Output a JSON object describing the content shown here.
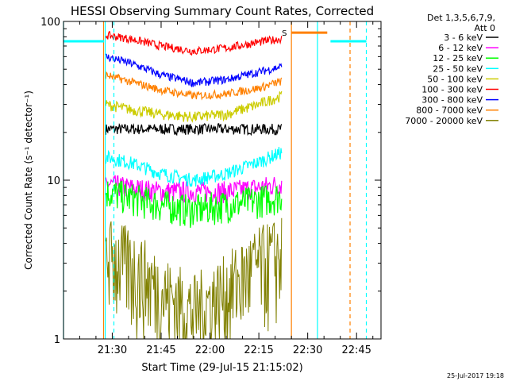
{
  "chart_data": {
    "type": "line",
    "title": "HESSI Observing Summary Count Rates, Corrected",
    "xlabel": "Start Time (29-Jul-15 21:15:02)",
    "ylabel": "Corrected Count Rate (s⁻¹ detector⁻¹)",
    "y_scale": "log",
    "ylim": [
      1,
      100
    ],
    "yticks": [
      "1",
      "10",
      "100"
    ],
    "xlim": [
      "21:15:02",
      "22:52:30"
    ],
    "xticks": [
      "21:30",
      "21:45",
      "22:00",
      "22:15",
      "22:30",
      "22:45"
    ],
    "legend_header": [
      "Det 1,3,5,6,7,9,",
      "Att 0"
    ],
    "legend_position": "right",
    "footer_date": "25-Jul-2017 19:18",
    "annotation_s": "S",
    "series": [
      {
        "name": "3 - 6 keV",
        "color": "#000000",
        "x": [
          "21:28",
          "21:35",
          "21:45",
          "21:55",
          "22:05",
          "22:15",
          "22:22"
        ],
        "y": [
          21,
          21,
          21,
          21,
          21,
          21,
          21
        ],
        "noise": 0.04
      },
      {
        "name": "6 - 12 keV",
        "color": "#ff00ff",
        "x": [
          "21:28",
          "21:35",
          "21:45",
          "21:55",
          "22:05",
          "22:15",
          "22:22"
        ],
        "y": [
          9.5,
          9,
          8.5,
          8.5,
          8.5,
          9,
          9.5
        ],
        "noise": 0.08
      },
      {
        "name": "12 - 25 keV",
        "color": "#00ff00",
        "x": [
          "21:28",
          "21:35",
          "21:45",
          "21:55",
          "22:05",
          "22:15",
          "22:22"
        ],
        "y": [
          8.5,
          7.8,
          7,
          6.5,
          7,
          7.5,
          8
        ],
        "noise": 0.12
      },
      {
        "name": "25 - 50 keV",
        "color": "#00ffff",
        "x": [
          "21:28",
          "21:35",
          "21:45",
          "21:55",
          "22:05",
          "22:15",
          "22:22"
        ],
        "y": [
          14,
          13,
          11,
          10,
          11,
          13,
          15
        ],
        "noise": 0.05
      },
      {
        "name": "50 - 100 keV",
        "color": "#cccc00",
        "x": [
          "21:28",
          "21:35",
          "21:45",
          "21:55",
          "22:05",
          "22:15",
          "22:22"
        ],
        "y": [
          30,
          28,
          26,
          25,
          26,
          30,
          34
        ],
        "noise": 0.04
      },
      {
        "name": "100 - 300 keV",
        "color": "#ff0000",
        "x": [
          "21:28",
          "21:35",
          "21:45",
          "21:55",
          "22:05",
          "22:15",
          "22:22"
        ],
        "y": [
          82,
          78,
          70,
          65,
          68,
          74,
          78
        ],
        "noise": 0.03
      },
      {
        "name": "300 - 800 keV",
        "color": "#0000ff",
        "x": [
          "21:28",
          "21:35",
          "21:45",
          "21:55",
          "22:05",
          "22:15",
          "22:22"
        ],
        "y": [
          60,
          55,
          46,
          41,
          43,
          48,
          52
        ],
        "noise": 0.03
      },
      {
        "name": "800 - 7000 keV",
        "color": "#ff8000",
        "x": [
          "21:28",
          "21:35",
          "21:45",
          "21:55",
          "22:05",
          "22:15",
          "22:22"
        ],
        "y": [
          46,
          42,
          37,
          34,
          35,
          38,
          42
        ],
        "noise": 0.03
      },
      {
        "name": "7000 - 20000 keV",
        "color": "#808000",
        "x": [
          "21:28",
          "21:35",
          "21:45",
          "21:55",
          "22:05",
          "22:15",
          "22:22"
        ],
        "y": [
          3.5,
          3,
          2,
          1.5,
          2,
          3,
          3.5
        ],
        "noise": 0.35
      }
    ],
    "hlines": [
      {
        "color": "#00ffff",
        "y": 75,
        "from": "21:15:02",
        "to": "21:27:30"
      },
      {
        "color": "#ff8000",
        "y": 85,
        "from": "22:25",
        "to": "22:36"
      },
      {
        "color": "#00ffff",
        "y": 75,
        "from": "22:37",
        "to": "22:48"
      }
    ],
    "vlines": [
      {
        "color": "#00ffff",
        "style": "solid",
        "x": "21:15:02"
      },
      {
        "color": "#ff8000",
        "style": "solid",
        "x": "21:27:20"
      },
      {
        "color": "#00ffff",
        "style": "solid",
        "x": "21:27:50"
      },
      {
        "color": "#00ffff",
        "style": "dashed",
        "x": "21:30:30"
      },
      {
        "color": "#ff8000",
        "style": "solid",
        "x": "22:25"
      },
      {
        "color": "#00ffff",
        "style": "solid",
        "x": "22:33"
      },
      {
        "color": "#ff8000",
        "style": "dashed",
        "x": "22:43"
      },
      {
        "color": "#00ffff",
        "style": "dashed",
        "x": "22:48"
      }
    ]
  }
}
